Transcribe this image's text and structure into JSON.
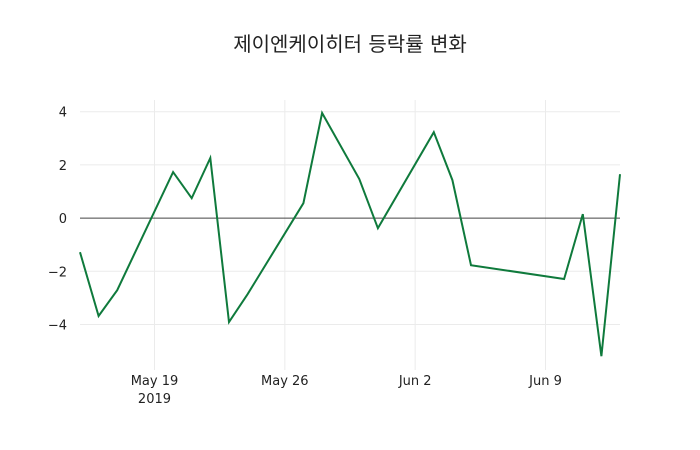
{
  "chart_data": {
    "type": "line",
    "title": "제이엔케이히터 등락률 변화",
    "xlabel": "",
    "ylabel": "",
    "x": [
      "2019-05-15",
      "2019-05-16",
      "2019-05-17",
      "2019-05-20",
      "2019-05-21",
      "2019-05-22",
      "2019-05-23",
      "2019-05-24",
      "2019-05-27",
      "2019-05-28",
      "2019-05-30",
      "2019-05-31",
      "2019-06-03",
      "2019-06-04",
      "2019-06-05",
      "2019-06-10",
      "2019-06-11",
      "2019-06-12",
      "2019-06-13"
    ],
    "series": [
      {
        "name": "등락률",
        "color": "#0f7a3c",
        "values": [
          -1.28,
          -3.68,
          -2.71,
          1.73,
          0.75,
          2.26,
          -3.91,
          -2.86,
          0.56,
          3.95,
          1.47,
          -0.38,
          3.23,
          1.43,
          -1.77,
          -2.29,
          0.15,
          -5.19,
          1.65
        ]
      }
    ],
    "x_ticks": [
      {
        "date": "2019-05-19",
        "label": "May 19",
        "sublabel": "2019"
      },
      {
        "date": "2019-05-26",
        "label": "May 26",
        "sublabel": ""
      },
      {
        "date": "2019-06-02",
        "label": "Jun 2",
        "sublabel": ""
      },
      {
        "date": "2019-06-09",
        "label": "Jun 9",
        "sublabel": ""
      }
    ],
    "y_ticks": [
      4,
      2,
      0,
      -2,
      -4
    ],
    "y_tick_labels": [
      "4",
      "2",
      "0",
      "−2",
      "−4"
    ],
    "xlim": [
      "2019-05-15",
      "2019-06-13"
    ],
    "ylim": [
      -5.71,
      4.44
    ],
    "grid": true,
    "zero_line": true,
    "legend": "none"
  },
  "colors": {
    "line": "#0f7a3c",
    "grid": "#ebebeb",
    "zeroline": "#444444",
    "text": "#222222"
  }
}
